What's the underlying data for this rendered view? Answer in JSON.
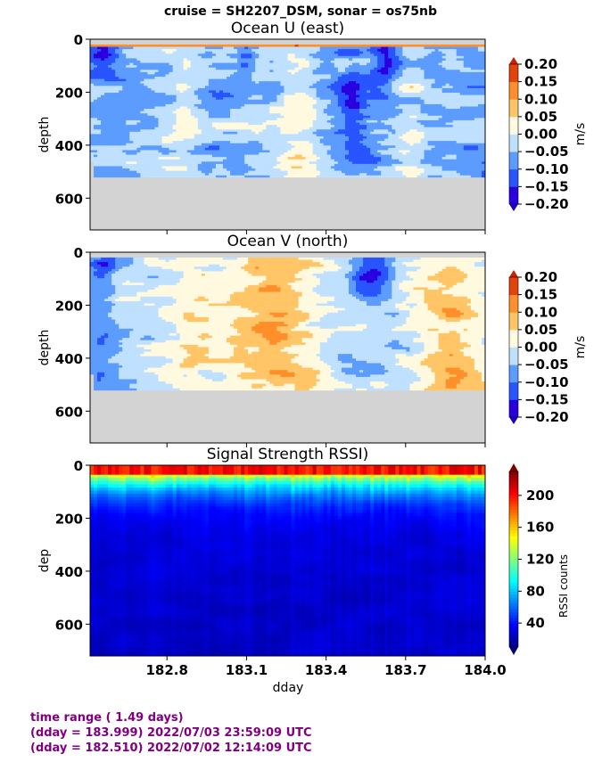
{
  "figure_title": "cruise = SH2207_DSM,  sonar = os75nb",
  "xlabel": "dday",
  "footer": {
    "line1": "time range ( 1.49 days)",
    "line2": "(dday = 183.999) 2022/07/03 23:59:09 UTC",
    "line3": "(dday = 182.510) 2022/07/02 12:14:09 UTC",
    "color": "#800080"
  },
  "chart_data": [
    {
      "type": "heatmap",
      "title": "Ocean U (east)",
      "ylabel": "depth",
      "xlim": [
        182.51,
        184.0
      ],
      "ylim": [
        720,
        0
      ],
      "yticks": [
        "0",
        "200",
        "400",
        "600"
      ],
      "xticks": [],
      "colorbar": {
        "label": "m/s",
        "range": [
          -0.2,
          0.2
        ],
        "ticks": [
          "0.20",
          "0.15",
          "0.10",
          "0.05",
          "0.00",
          "−0.05",
          "−0.10",
          "−0.15",
          "−0.20"
        ],
        "colors": [
          "#2a00e0",
          "#2855ff",
          "#5c9cff",
          "#bfe0ff",
          "#fffadf",
          "#ffc566",
          "#ff8f2a",
          "#e2440a"
        ]
      },
      "data_depth_max": 520,
      "no_data_color": "#d3d3d3",
      "pattern": "mostly weak westward flow (-0.05 to -0.10 m/s) with patches of near-zero and positive values; strong negative cores near the surface around 182.55, 183.1 and 183.6 dday"
    },
    {
      "type": "heatmap",
      "title": "Ocean V (north)",
      "ylabel": "depth",
      "xlim": [
        182.51,
        184.0
      ],
      "ylim": [
        720,
        0
      ],
      "yticks": [
        "0",
        "200",
        "400",
        "600"
      ],
      "xticks": [],
      "colorbar": {
        "label": "m/s",
        "range": [
          -0.2,
          0.2
        ],
        "ticks": [
          "0.20",
          "0.15",
          "0.10",
          "0.05",
          "0.00",
          "−0.05",
          "−0.10",
          "−0.15",
          "−0.20"
        ],
        "colors": [
          "#2a00e0",
          "#2855ff",
          "#5c9cff",
          "#bfe0ff",
          "#fffadf",
          "#ffc566",
          "#ff8f2a",
          "#e2440a"
        ]
      },
      "data_depth_max": 520,
      "no_data_color": "#d3d3d3",
      "pattern": "southward flow near surface early and around 183.6; strong northward flow (0.10-0.15 m/s) between 183.05 and 183.35 dday and after 183.8 dday"
    },
    {
      "type": "heatmap",
      "title": "Signal Strength RSSI)",
      "ylabel": "dep",
      "xlabel": "dday",
      "xlim": [
        182.51,
        184.0
      ],
      "ylim": [
        720,
        0
      ],
      "yticks": [
        "0",
        "200",
        "400",
        "600"
      ],
      "xticks": [
        "182.8",
        "183.1",
        "183.4",
        "183.7",
        "184.0"
      ],
      "colorbar": {
        "label": "RSSI counts",
        "range": [
          10,
          230
        ],
        "ticks": [
          "200",
          "160",
          "120",
          "80",
          "40"
        ],
        "colormap": "jet"
      },
      "data_depth_max": 720,
      "pattern": "high RSSI (~200) in top 30 m, decreasing through cyan/green to ~60 at 150 m and ~20 below 500 m"
    }
  ]
}
